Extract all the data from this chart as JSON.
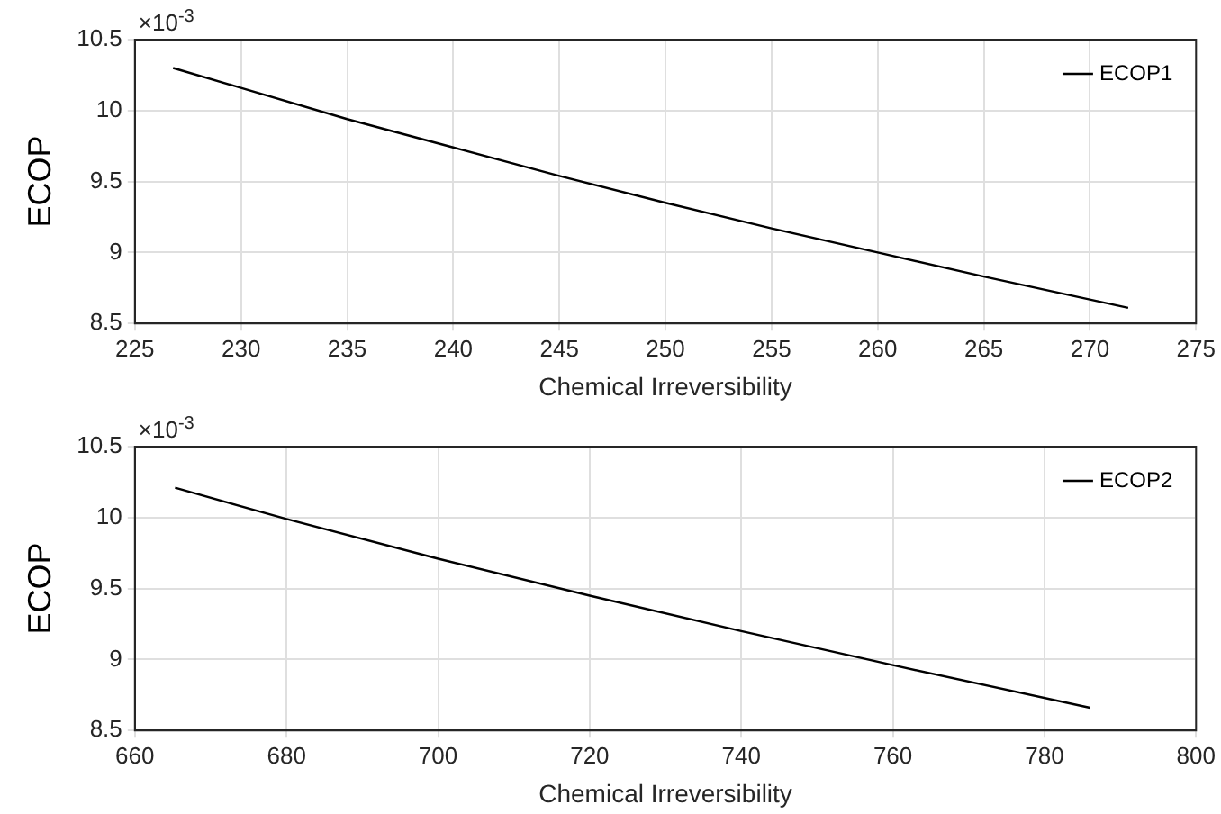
{
  "chart_data": [
    {
      "type": "line",
      "xlabel": "Chemical Irreversibility",
      "ylabel": "ECOP",
      "annotations": [
        "×10$^{-3}$"
      ],
      "legend": "top right",
      "grid": true,
      "xlim": [
        225,
        275
      ],
      "xticks": [
        225,
        230,
        235,
        240,
        245,
        250,
        255,
        260,
        265,
        270,
        275
      ],
      "ylim": [
        8.5,
        10.5
      ],
      "yticks": [
        8.5,
        9,
        9.5,
        10,
        10.5
      ],
      "series": [
        {
          "name": "ECOP1",
          "color": "#000000",
          "x": [
            226.8,
            230,
            235,
            240,
            245,
            250,
            255,
            260,
            265,
            271.8
          ],
          "values": [
            10.3,
            10.16,
            9.94,
            9.74,
            9.54,
            9.35,
            9.17,
            9.0,
            8.83,
            8.61
          ]
        }
      ]
    },
    {
      "type": "line",
      "xlabel": "Chemical Irreversibility",
      "ylabel": "ECOP",
      "annotations": [
        "×10$^{-3}$"
      ],
      "legend": "top right",
      "grid": true,
      "xlim": [
        660,
        800
      ],
      "xticks": [
        660,
        680,
        700,
        720,
        740,
        760,
        780,
        800
      ],
      "ylim": [
        8.5,
        10.5
      ],
      "yticks": [
        8.5,
        9,
        9.5,
        10,
        10.5
      ],
      "series": [
        {
          "name": "ECOP2",
          "color": "#000000",
          "x": [
            665.3,
            680,
            700,
            720,
            740,
            760,
            786
          ],
          "values": [
            10.21,
            9.99,
            9.71,
            9.45,
            9.2,
            8.96,
            8.66
          ]
        }
      ]
    }
  ]
}
